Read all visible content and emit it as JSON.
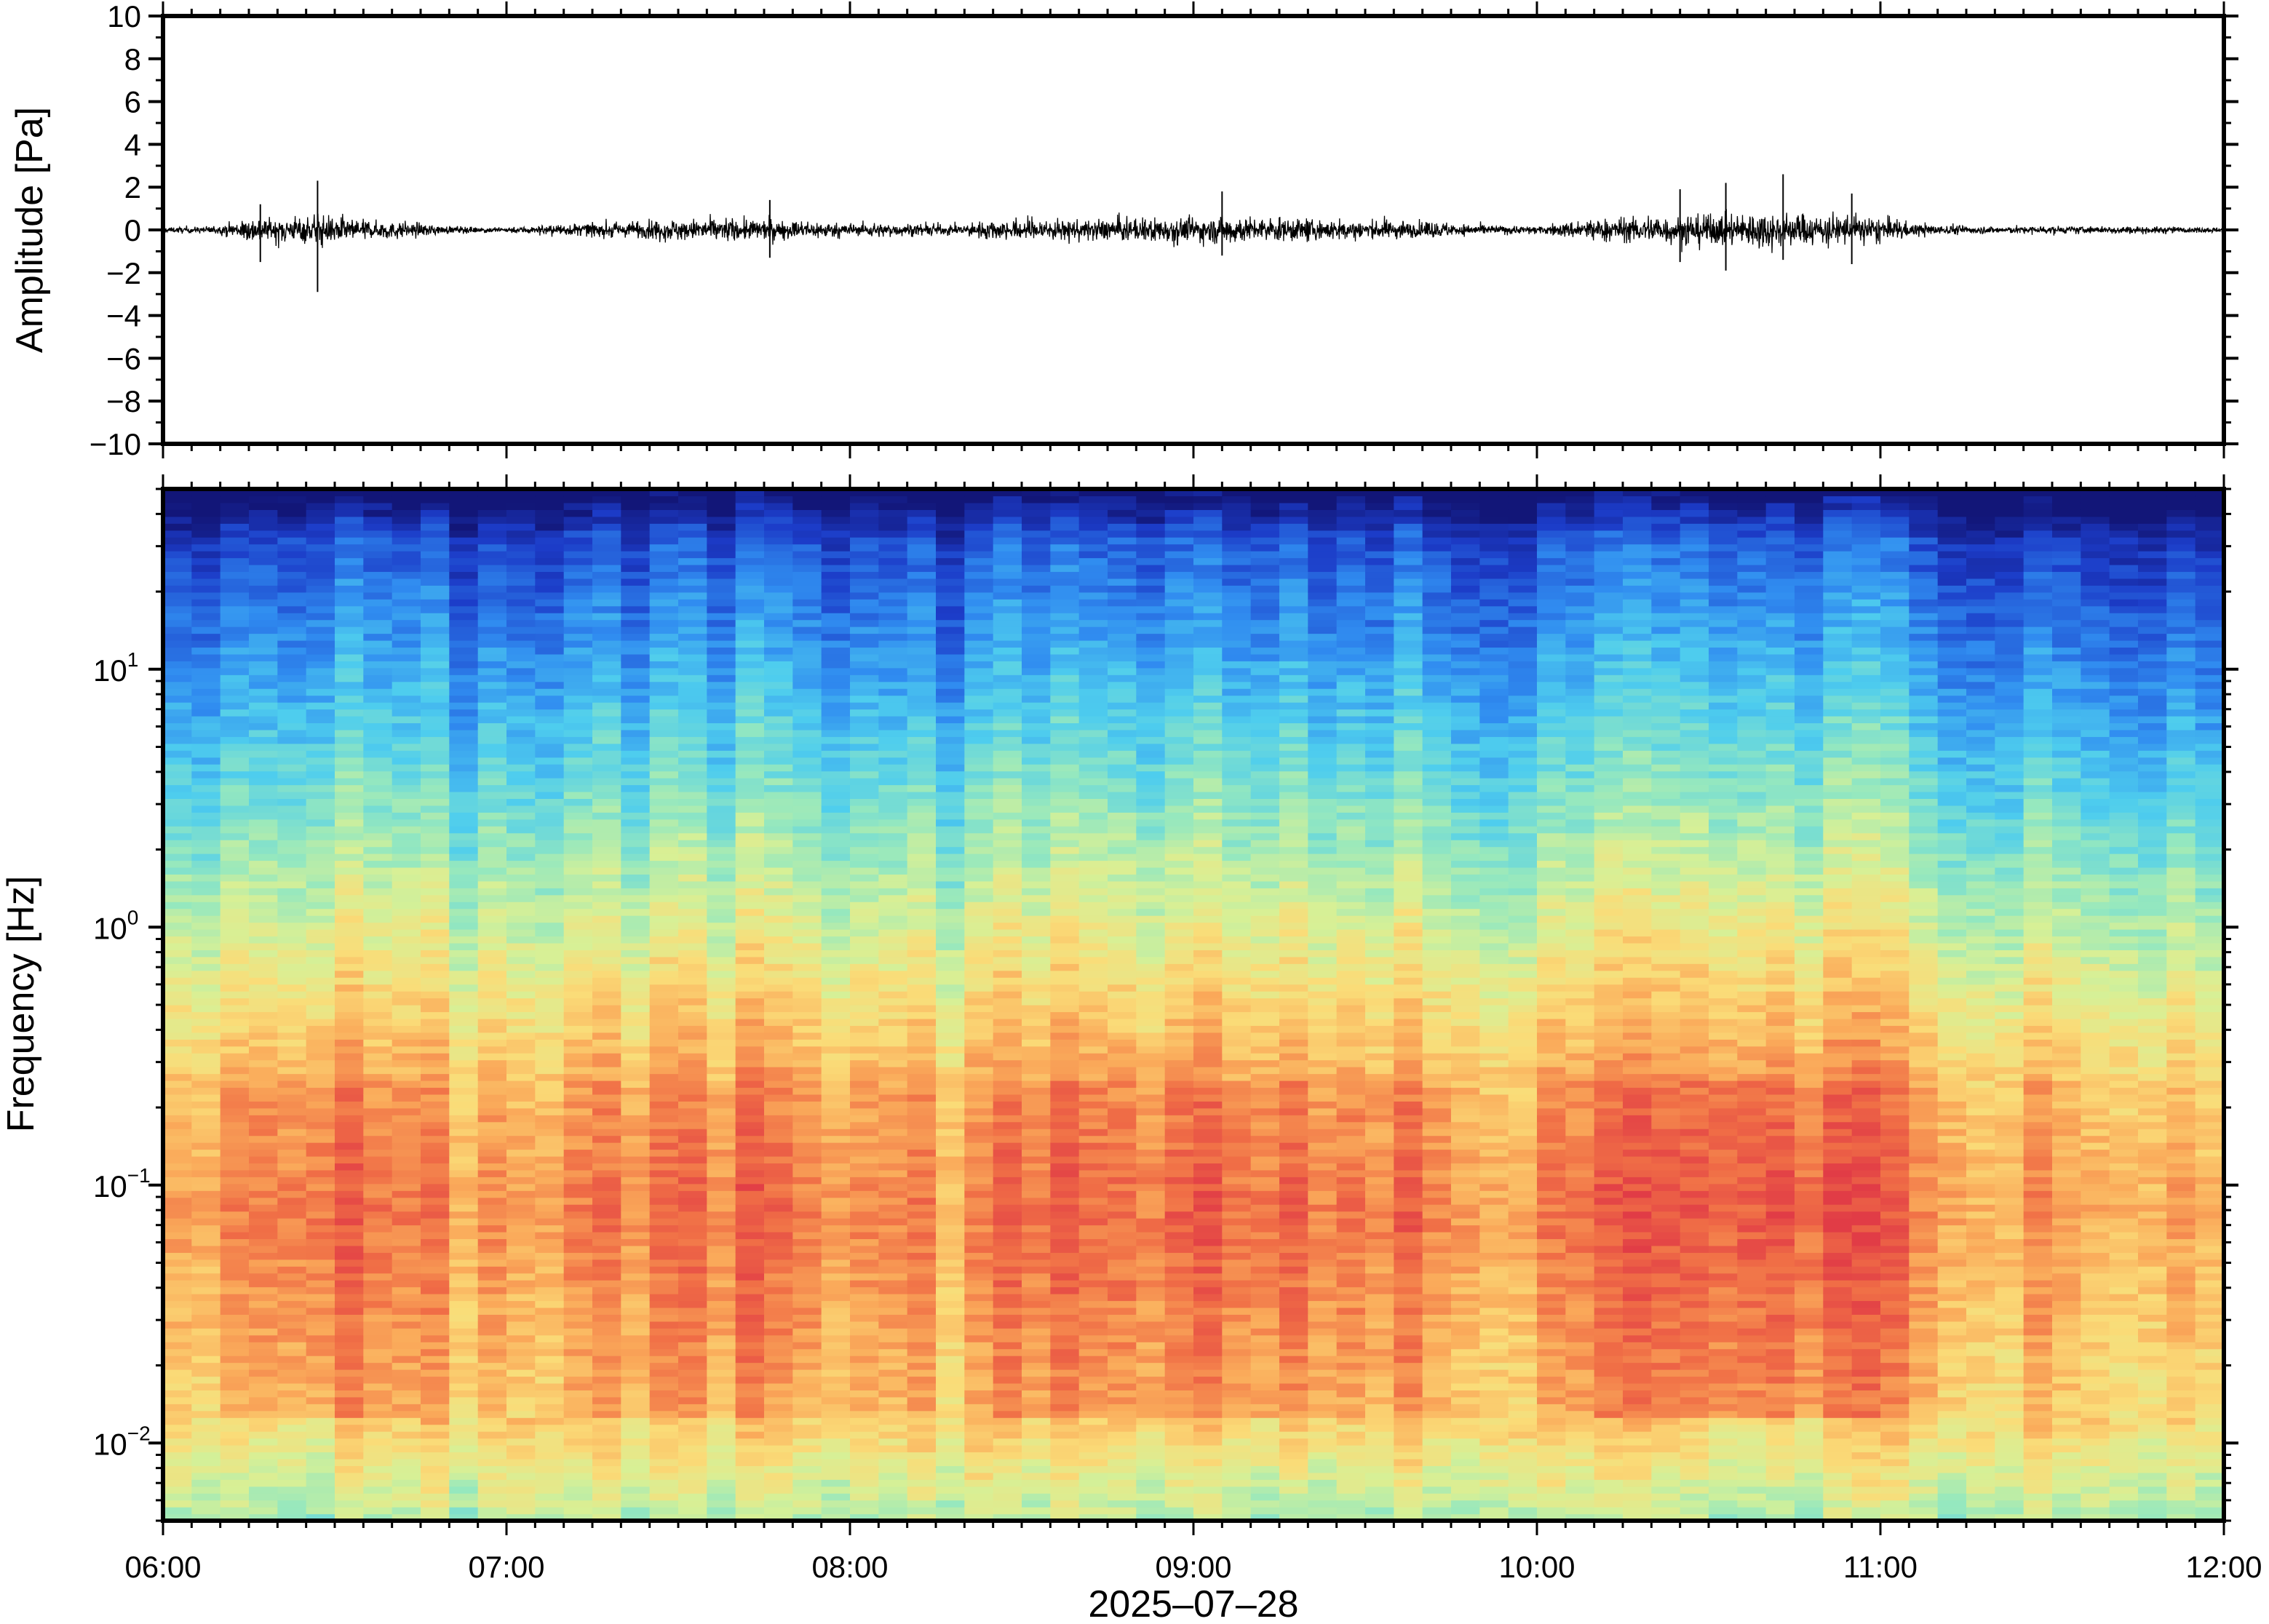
{
  "chart_data": [
    {
      "type": "line",
      "panel": "waveform",
      "title": "",
      "ylabel": "Amplitude [Pa]",
      "xlabel": "",
      "ylim": [
        -10,
        10
      ],
      "yticks": [
        -10,
        -8,
        -6,
        -4,
        -2,
        0,
        2,
        4,
        6,
        8,
        10
      ],
      "ytick_labels": [
        "−10",
        "−8",
        "−6",
        "−4",
        "−2",
        "0",
        "2",
        "4",
        "6",
        "8",
        "10"
      ],
      "x_time_range": [
        "06:00",
        "12:00"
      ],
      "envelope": {
        "description_free": true,
        "times": [
          "06:00",
          "06:10",
          "06:15",
          "06:20",
          "06:25",
          "06:27",
          "06:30",
          "06:35",
          "06:40",
          "06:50",
          "07:00",
          "07:10",
          "07:20",
          "07:30",
          "07:40",
          "07:50",
          "08:00",
          "08:10",
          "08:20",
          "08:25",
          "08:30",
          "08:40",
          "08:50",
          "09:00",
          "09:10",
          "09:20",
          "09:30",
          "09:40",
          "09:50",
          "10:00",
          "10:10",
          "10:20",
          "10:30",
          "10:40",
          "10:45",
          "10:50",
          "11:00",
          "11:05",
          "11:10",
          "11:20",
          "11:30",
          "11:40",
          "11:50",
          "12:00"
        ],
        "amplitude": [
          0.2,
          0.3,
          1.0,
          0.9,
          1.0,
          1.2,
          1.0,
          0.8,
          0.7,
          0.3,
          0.2,
          0.5,
          0.6,
          0.8,
          0.9,
          0.7,
          0.5,
          0.5,
          0.4,
          0.8,
          0.9,
          0.8,
          0.9,
          1.0,
          1.0,
          0.9,
          0.8,
          0.7,
          0.4,
          0.3,
          0.9,
          1.1,
          1.3,
          1.4,
          1.3,
          1.2,
          1.0,
          0.6,
          0.4,
          0.3,
          0.3,
          0.3,
          0.25,
          0.2
        ]
      },
      "spikes": [
        {
          "time": "06:27",
          "min": -2.9,
          "max": 2.3
        },
        {
          "time": "06:17",
          "min": -1.5,
          "max": 1.2
        },
        {
          "time": "07:46",
          "min": -1.3,
          "max": 1.4
        },
        {
          "time": "09:05",
          "min": -1.2,
          "max": 1.8
        },
        {
          "time": "10:25",
          "min": -1.5,
          "max": 1.9
        },
        {
          "time": "10:33",
          "min": -1.9,
          "max": 2.2
        },
        {
          "time": "10:43",
          "min": -1.4,
          "max": 2.6
        },
        {
          "time": "10:55",
          "min": -1.6,
          "max": 1.7
        }
      ]
    },
    {
      "type": "heatmap",
      "panel": "spectrogram",
      "title": "",
      "ylabel": "Frequency [Hz]",
      "xlabel": "2025–07–28",
      "yscale": "log",
      "ylim": [
        0.005,
        50
      ],
      "yticks": [
        0.01,
        0.1,
        1,
        10
      ],
      "ytick_labels": [
        {
          "base": "10",
          "exp": "−2"
        },
        {
          "base": "10",
          "exp": "−1"
        },
        {
          "base": "10",
          "exp": "0"
        },
        {
          "base": "10",
          "exp": "1"
        }
      ],
      "xticks": [
        "06:00",
        "07:00",
        "08:00",
        "09:00",
        "10:00",
        "11:00",
        "12:00"
      ],
      "colormap": "rainbow (dark blue = low power, red = high power)",
      "quiet_columns_times": [
        "07:05",
        "08:20",
        "09:55",
        "11:20",
        "11:40"
      ],
      "strong_band_hz": [
        0.03,
        0.25
      ],
      "colors": {
        "low": "#1a28a8",
        "mid_low": "#3ea0ea",
        "mid": "#8fe3c2",
        "mid_high": "#f5e48c",
        "high": "#f8a858",
        "peak": "#e84a4a"
      }
    }
  ]
}
